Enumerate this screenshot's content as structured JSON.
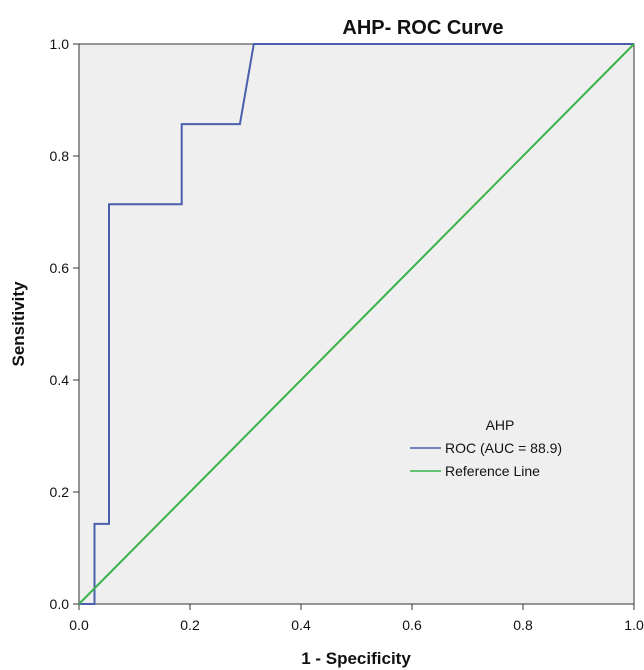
{
  "chart_data": {
    "type": "line",
    "title": "AHP- ROC Curve",
    "xlabel": "1 - Specificity",
    "ylabel": "Sensitivity",
    "xlim": [
      0.0,
      1.0
    ],
    "ylim": [
      0.0,
      1.0
    ],
    "x_ticks": [
      "0.0",
      "0.2",
      "0.4",
      "0.6",
      "0.8",
      "1.0"
    ],
    "y_ticks": [
      "0.0",
      "0.2",
      "0.4",
      "0.6",
      "0.8",
      "1.0"
    ],
    "grid": false,
    "legend": {
      "title": "AHP",
      "placement": "center-right"
    },
    "series": [
      {
        "name": "ROC (AUC = 88.9)",
        "color": "#4a5fae",
        "step": true,
        "x": [
          0.0,
          0.028,
          0.028,
          0.054,
          0.054,
          0.185,
          0.185,
          0.29,
          0.315,
          1.0
        ],
        "y": [
          0.0,
          0.0,
          0.143,
          0.143,
          0.714,
          0.714,
          0.857,
          0.857,
          1.0,
          1.0
        ]
      },
      {
        "name": "Reference Line",
        "color": "#3ab24a",
        "step": false,
        "x": [
          0.0,
          1.0
        ],
        "y": [
          0.0,
          1.0
        ]
      }
    ],
    "colors": {
      "plot_background": "#efefef",
      "axis": "#333333",
      "text": "#111111"
    }
  }
}
